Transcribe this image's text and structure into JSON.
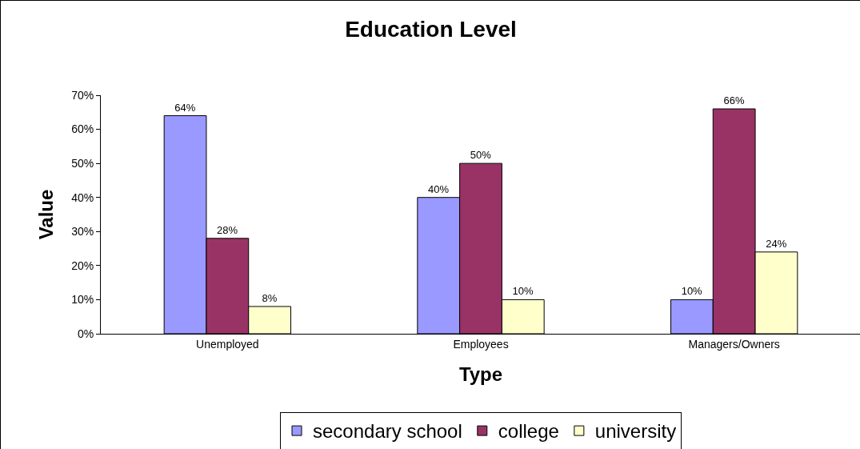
{
  "chart_data": {
    "type": "bar",
    "title": "Education Level",
    "xlabel": "Type",
    "ylabel": "Value",
    "categories": [
      "Unemployed",
      "Employees",
      "Managers/Owners"
    ],
    "series": [
      {
        "name": "secondary school",
        "color": "#9999ff",
        "values": [
          64,
          40,
          10
        ],
        "value_labels": [
          "64%",
          "40%",
          "10%"
        ]
      },
      {
        "name": "college",
        "color": "#993366",
        "values": [
          28,
          50,
          66
        ],
        "value_labels": [
          "28%",
          "50%",
          "66%"
        ]
      },
      {
        "name": "university",
        "color": "#ffffcc",
        "values": [
          8,
          10,
          24
        ],
        "value_labels": [
          "8%",
          "10%",
          "24%"
        ]
      }
    ],
    "ylim": [
      0,
      70
    ],
    "yticks": [
      {
        "value": 0,
        "label": "0%"
      },
      {
        "value": 10,
        "label": "10%"
      },
      {
        "value": 20,
        "label": "20%"
      },
      {
        "value": 30,
        "label": "30%"
      },
      {
        "value": 40,
        "label": "40%"
      },
      {
        "value": 50,
        "label": "50%"
      },
      {
        "value": 60,
        "label": "60%"
      },
      {
        "value": 70,
        "label": "70%"
      }
    ],
    "grid": false,
    "legend": "bottom"
  }
}
